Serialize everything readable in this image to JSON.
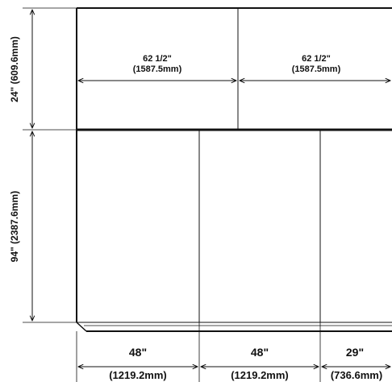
{
  "top_dimensions": {
    "left": {
      "inches": "62 1/2\"",
      "mm": "(1587.5mm)"
    },
    "right": {
      "inches": "62 1/2\"",
      "mm": "(1587.5mm)"
    }
  },
  "vertical_dimensions": {
    "upper": "24\" (609.6mm)",
    "lower": "94\" (2387.6mm)"
  },
  "bottom_dimensions": [
    {
      "inches": "48\"",
      "mm": "(1219.2mm)"
    },
    {
      "inches": "48\"",
      "mm": "(1219.2mm)"
    },
    {
      "inches": "29\"",
      "mm": "(736.6mm)"
    }
  ],
  "colors": {
    "line": "#111111",
    "background": "#ffffff"
  }
}
